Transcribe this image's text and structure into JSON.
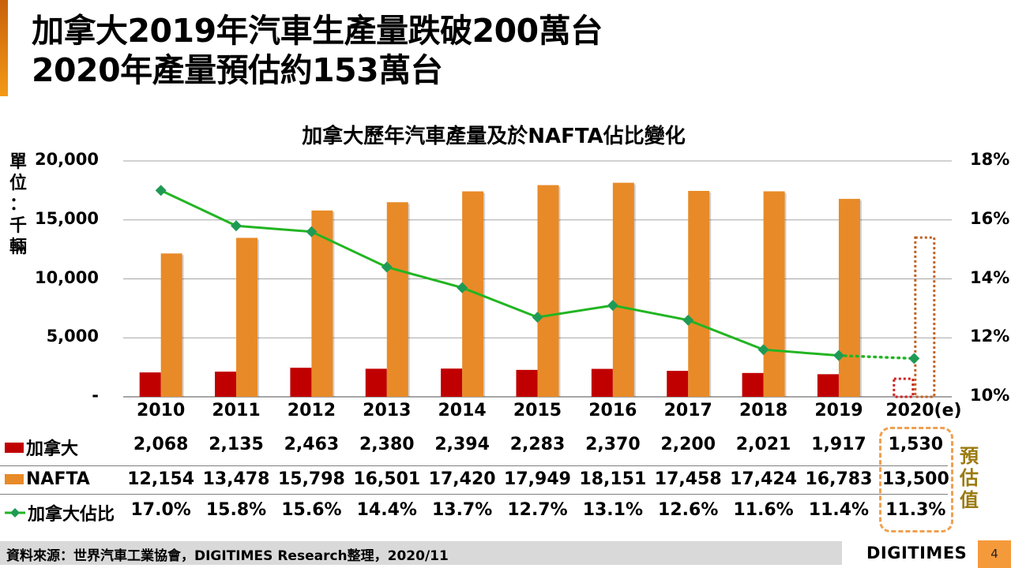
{
  "header": {
    "title_line1": "加拿大2019年汽車生產量跌破200萬台",
    "title_line2": "2020年產量預估約153萬台"
  },
  "colors": {
    "canada": "#c00000",
    "nafta": "#e88a28",
    "share_line": "#22b522",
    "share_marker": "#1f9a55",
    "accent": "#f39a16",
    "estimate_box": "#f0a050",
    "estimate_label": "#9a7a10",
    "canada_est_outline": "#d02020",
    "nafta_est_outline": "#c06020"
  },
  "chart_data": {
    "type": "bar",
    "title": "加拿大歷年汽車產量及於NAFTA佔比變化",
    "ylabel": "單位：千輛",
    "xlabel": "",
    "categories": [
      "2010",
      "2011",
      "2012",
      "2013",
      "2014",
      "2015",
      "2016",
      "2017",
      "2018",
      "2019",
      "2020(e)"
    ],
    "ylim": [
      0,
      20000
    ],
    "y_ticks": [
      "-",
      "5,000",
      "10,000",
      "15,000",
      "20,000"
    ],
    "y2lim": [
      10,
      18
    ],
    "y2_ticks": [
      "10%",
      "12%",
      "14%",
      "16%",
      "18%"
    ],
    "grid": true,
    "series": [
      {
        "name": "加拿大",
        "type": "bar",
        "values": [
          2068,
          2135,
          2463,
          2380,
          2394,
          2283,
          2370,
          2200,
          2021,
          1917,
          1530
        ],
        "estimate_last": true
      },
      {
        "name": "NAFTA",
        "type": "bar",
        "values": [
          12154,
          13478,
          15798,
          16501,
          17420,
          17949,
          18151,
          17458,
          17424,
          16783,
          13500
        ],
        "estimate_last": true
      },
      {
        "name": "加拿大佔比",
        "type": "line",
        "axis": "right",
        "unit": "%",
        "values": [
          17.0,
          15.8,
          15.6,
          14.4,
          13.7,
          12.7,
          13.1,
          12.6,
          11.6,
          11.4,
          11.3
        ],
        "estimate_last": true
      }
    ]
  },
  "table": {
    "rows": [
      {
        "label": "加拿大",
        "cells": [
          "2,068",
          "2,135",
          "2,463",
          "2,380",
          "2,394",
          "2,283",
          "2,370",
          "2,200",
          "2,021",
          "1,917",
          "1,530"
        ]
      },
      {
        "label": "NAFTA",
        "cells": [
          "12,154",
          "13,478",
          "15,798",
          "16,501",
          "17,420",
          "17,949",
          "18,151",
          "17,458",
          "17,424",
          "16,783",
          "13,500"
        ]
      },
      {
        "label": "加拿大佔比",
        "cells": [
          "17.0%",
          "15.8%",
          "15.6%",
          "14.4%",
          "13.7%",
          "12.7%",
          "13.1%",
          "12.6%",
          "11.6%",
          "11.4%",
          "11.3%"
        ]
      }
    ],
    "estimate_label": "預估值"
  },
  "footer": {
    "source": "資料來源：世界汽車工業協會，DIGITIMES Research整理，2020/11",
    "logo": "DIGITIMES",
    "page_number": "4"
  }
}
